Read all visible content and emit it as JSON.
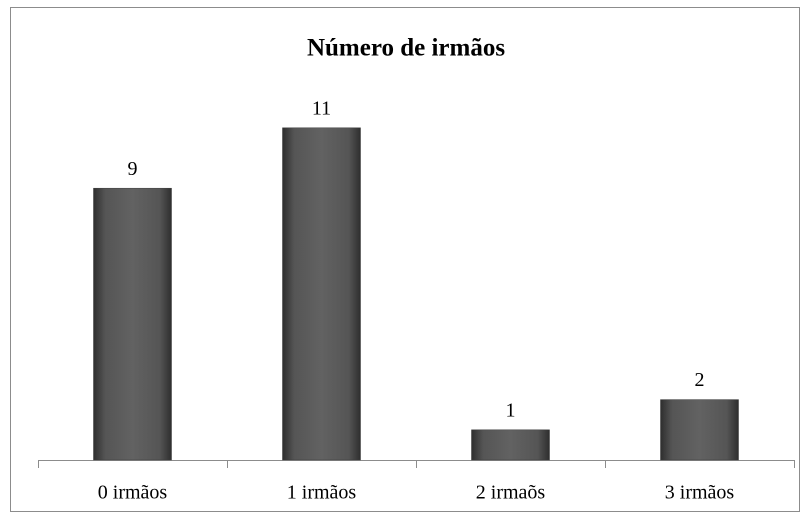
{
  "chart_data": {
    "type": "bar",
    "title": "Número de irmãos",
    "categories": [
      "0 irmãos",
      "1 irmãos",
      "2 irmaõs",
      "3 irmãos"
    ],
    "values": [
      9,
      11,
      1,
      2
    ],
    "color": "#595959"
  }
}
